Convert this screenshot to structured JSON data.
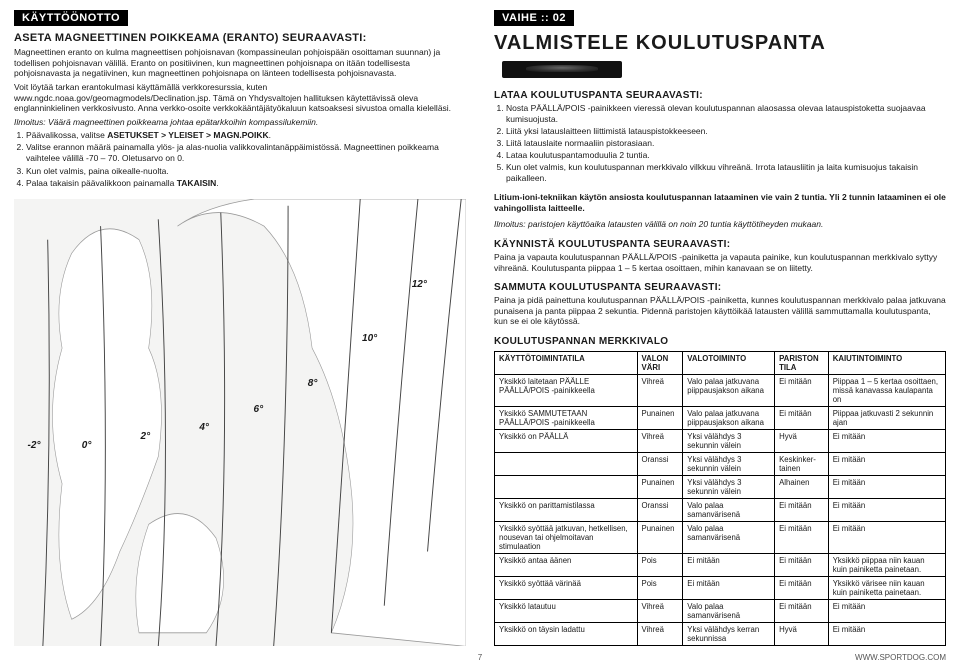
{
  "left": {
    "tag": "KÄYTTÖÖNOTTO",
    "h1": "ASETA MAGNEETTINEN POIKKEAMA (ERANTO) SEURAAVASTI:",
    "p1": "Magneettinen eranto on kulma magneettisen pohjoisnavan (kompassineulan pohjoispään osoittaman suunnan) ja todellisen pohjoisnavan välillä. Eranto on positiivinen, kun magneettinen pohjoisnapa on itään todellisesta pohjoisnavasta ja negatiivinen, kun magneettinen pohjoisnapa on länteen todellisesta pohjoisnavasta.",
    "p2": "Voit löytää tarkan erantokulmasi käyttämällä verkkoresurssia, kuten www.ngdc.noaa.gov/geomagmodels/Declination.jsp. Tämä on Yhdysvaltojen hallituksen käytettävissä oleva englanninkielinen verkkosivusto. Anna verkko-osoite verkkokääntäjätyökaluun katsoaksesi sivustoa omalla kielelläsi.",
    "note": "Ilmoitus: Väärä magneettinen poikkeama johtaa epätarkkoihin kompassilukemiin.",
    "steps": [
      "Päävalikossa, valitse ASETUKSET > YLEISET > MAGN.POIKK.",
      "Valitse erannon määrä painamalla ylös- ja alas-nuolia valikkovalintanäppäimistössä. Magneettinen poikkeama vaihtelee välillä -70 – 70. Oletusarvo on 0.",
      "Kun olet valmis, paina oikealle-nuolta.",
      "Palaa takaisin päävalikkoon painamalla TAKAISIN."
    ],
    "map": {
      "degrees": [
        "-2°",
        "0°",
        "2°",
        "4°",
        "6°",
        "8°",
        "10°",
        "12°"
      ],
      "land_color": "#ffffff",
      "sea_color": "#f4f4f3",
      "line_color": "#444444"
    }
  },
  "right": {
    "stage": "VAIHE :: 02",
    "h2": "VALMISTELE KOULUTUSPANTA",
    "sec1_h": "LATAA KOULUTUSPANTA SEURAAVASTI:",
    "sec1_steps": [
      "Nosta PÄÄLLÄ/POIS -painikkeen vieressä olevan koulutuspannan alaosassa olevaa latauspistoketta suojaavaa kumisuojusta.",
      "Liitä yksi latauslaitteen liittimistä latauspistokkeeseen.",
      "Liitä latauslaite normaaliin pistorasiaan.",
      "Lataa koulutuspantamoduulia 2 tuntia.",
      "Kun olet valmis, kun koulutuspannan merkkivalo vilkkuu vihreänä. Irrota latausliitin ja laita kumisuojus takaisin paikalleen."
    ],
    "litium": "Litium-ioni-tekniikan käytön ansiosta koulutuspannan lataaminen vie vain 2 tuntia. Yli 2 tunnin lataaminen ei ole vahingollista laitteelle.",
    "note2": "Ilmoitus: paristojen käyttöaika latausten välillä on noin 20 tuntia käyttötiheyden mukaan.",
    "sec2_h": "KÄYNNISTÄ KOULUTUSPANTA SEURAAVASTI:",
    "sec2_p": "Paina ja vapauta koulutuspannan PÄÄLLÄ/POIS -painiketta ja vapauta painike, kun koulutuspannan merkkivalo syttyy vihreänä. Koulutuspanta piippaa 1 – 5 kertaa osoittaen, mihin kanavaan se on liitetty.",
    "sec3_h": "SAMMUTA  KOULUTUSPANTA SEURAAVASTI:",
    "sec3_p": "Paina ja pidä painettuna koulutuspannan PÄÄLLÄ/POIS -painiketta, kunnes koulutuspannan merkkivalo palaa jatkuvana punaisena ja panta piippaa 2 sekuntia. Pidennä paristojen käyttöikää latausten välillä sammuttamalla koulutuspanta, kun se ei ole käytössä.",
    "sec4_h": "KOULUTUSPANNAN MERKKIVALO",
    "table": {
      "head": [
        "KÄYTTÖTOIMINTATILA",
        "VALON VÄRI",
        "VALOTOIMINTO",
        "PARISTON TILA",
        "KAIUTINTOIMINTO"
      ],
      "rows": [
        [
          "Yksikkö laitetaan PÄÄLLE PÄÄLLÄ/POIS -painikkeella",
          "Vihreä",
          "Valo palaa jatkuvana piippausjakson aikana",
          "Ei mitään",
          "Piippaa 1 – 5 kertaa osoittaen, missä kanavassa kaulapanta on"
        ],
        [
          "Yksikkö SAMMUTETAAN PÄÄLLÄ/POIS -painikkeella",
          "Punainen",
          "Valo palaa jatkuvana piippausjakson aikana",
          "Ei mitään",
          "Piippaa jatkuvasti 2 sekunnin ajan"
        ],
        [
          "Yksikkö on PÄÄLLÄ",
          "Vihreä",
          "Yksi välähdys 3 sekunnin välein",
          "Hyvä",
          "Ei mitään"
        ],
        [
          "",
          "Oranssi",
          "Yksi välähdys 3 sekunnin välein",
          "Keskinker-tainen",
          "Ei mitään"
        ],
        [
          "",
          "Punainen",
          "Yksi välähdys 3 sekunnin välein",
          "Alhainen",
          "Ei mitään"
        ],
        [
          "Yksikkö on parittamistilassa",
          "Oranssi",
          "Valo palaa samanvärisenä",
          "Ei mitään",
          "Ei mitään"
        ],
        [
          "Yksikkö syöttää jatkuvan, hetkellisen, nousevan tai ohjelmoitavan stimulaation",
          "Punainen",
          "Valo palaa samanvärisenä",
          "Ei mitään",
          "Ei mitään"
        ],
        [
          "Yksikkö antaa äänen",
          "Pois",
          "Ei mitään",
          "Ei mitään",
          "Yksikkö piippaa niin kauan kuin painiketta painetaan."
        ],
        [
          "Yksikkö syöttää värinää",
          "Pois",
          "Ei mitään",
          "Ei mitään",
          "Yksikkö värisee niin kauan kuin painiketta painetaan."
        ],
        [
          "Yksikkö latautuu",
          "Vihreä",
          "Valo palaa samanvärisenä",
          "Ei mitään",
          "Ei mitään"
        ],
        [
          "Yksikkö on täysin ladattu",
          "Vihreä",
          "Yksi välähdys kerran sekunnissa",
          "Hyvä",
          "Ei mitään"
        ]
      ]
    }
  },
  "footer": {
    "page": "7",
    "site": "WWW.SPORTDOG.COM"
  }
}
